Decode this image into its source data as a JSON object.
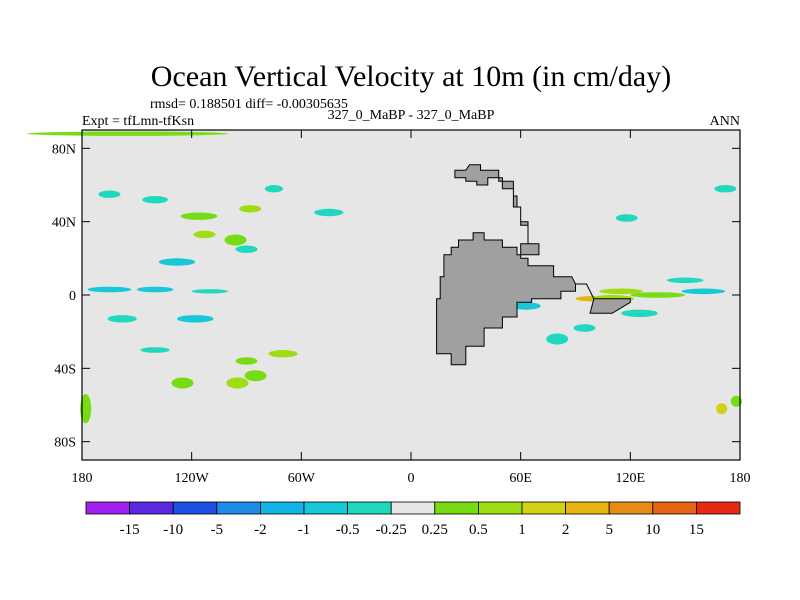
{
  "chart_data": {
    "type": "heatmap",
    "title": "Ocean Vertical Velocity at 10m (in cm/day)",
    "stats": "rmsd= 0.188501 diff= -0.00305635",
    "left_label": "Expt = tfLmn-tfKsn",
    "center_label": "327_0_MaBP - 327_0_MaBP",
    "right_label": "ANN",
    "x_ticks": [
      {
        "value": -180,
        "label": "180"
      },
      {
        "value": -120,
        "label": "120W"
      },
      {
        "value": -60,
        "label": "60W"
      },
      {
        "value": 0,
        "label": "0"
      },
      {
        "value": 60,
        "label": "60E"
      },
      {
        "value": 120,
        "label": "120E"
      },
      {
        "value": 180,
        "label": "180"
      }
    ],
    "y_ticks": [
      {
        "value": 80,
        "label": "80N"
      },
      {
        "value": 40,
        "label": "40N"
      },
      {
        "value": 0,
        "label": "0"
      },
      {
        "value": -40,
        "label": "40S"
      },
      {
        "value": -80,
        "label": "80S"
      }
    ],
    "xlim": [
      -180,
      180
    ],
    "ylim": [
      -90,
      90
    ],
    "colorbar": {
      "levels": [
        "-15",
        "-10",
        "-5",
        "-2",
        "-1",
        "-0.5",
        "-0.25",
        "0.25",
        "0.5",
        "1",
        "2",
        "5",
        "10",
        "15"
      ],
      "colors": [
        "#a020f0",
        "#5a28e0",
        "#1e50e6",
        "#1e8ce6",
        "#12b4e6",
        "#16c8d8",
        "#20d8c0",
        "#e6e6e6",
        "#78dc14",
        "#a0dc14",
        "#d2d214",
        "#e6b414",
        "#e68c14",
        "#e66414",
        "#e62814"
      ]
    },
    "palette": {
      "background": "#e6e6e6",
      "land": "#a0a0a0",
      "frame": "#000000"
    },
    "land": [
      [
        [
          24,
          68
        ],
        [
          30,
          68
        ],
        [
          32,
          71
        ],
        [
          38,
          71
        ],
        [
          38,
          68
        ],
        [
          48,
          68
        ],
        [
          48,
          62
        ],
        [
          56,
          62
        ],
        [
          56,
          48
        ],
        [
          60,
          48
        ],
        [
          60,
          38
        ],
        [
          64,
          38
        ],
        [
          64,
          28
        ],
        [
          70,
          28
        ],
        [
          70,
          22
        ],
        [
          58,
          22
        ],
        [
          58,
          26
        ],
        [
          50,
          26
        ],
        [
          50,
          30
        ],
        [
          40,
          30
        ],
        [
          40,
          34
        ],
        [
          34,
          34
        ],
        [
          34,
          30
        ],
        [
          26,
          30
        ],
        [
          26,
          26
        ],
        [
          22,
          26
        ],
        [
          22,
          22
        ],
        [
          18,
          22
        ],
        [
          18,
          10
        ],
        [
          16,
          10
        ],
        [
          16,
          -2
        ],
        [
          14,
          -2
        ],
        [
          14,
          -16
        ],
        [
          14,
          -32
        ],
        [
          22,
          -32
        ],
        [
          22,
          -38
        ],
        [
          30,
          -38
        ],
        [
          30,
          -28
        ],
        [
          40,
          -28
        ],
        [
          40,
          -18
        ],
        [
          50,
          -18
        ],
        [
          50,
          -12
        ],
        [
          58,
          -12
        ],
        [
          58,
          -4
        ],
        [
          66,
          -4
        ],
        [
          66,
          -2
        ],
        [
          82,
          -2
        ],
        [
          82,
          2
        ],
        [
          90,
          2
        ],
        [
          90,
          6
        ],
        [
          96,
          6
        ],
        [
          100,
          -2
        ],
        [
          98,
          -10
        ],
        [
          110,
          -10
        ],
        [
          120,
          -4
        ],
        [
          120,
          -2
        ],
        [
          100,
          -2
        ],
        [
          96,
          6
        ],
        [
          90,
          6
        ],
        [
          88,
          10
        ],
        [
          78,
          10
        ],
        [
          78,
          16
        ],
        [
          64,
          16
        ],
        [
          64,
          20
        ],
        [
          60,
          20
        ],
        [
          60,
          28
        ],
        [
          64,
          28
        ],
        [
          64,
          40
        ],
        [
          60,
          40
        ],
        [
          60,
          48
        ],
        [
          58,
          48
        ],
        [
          58,
          54
        ],
        [
          56,
          54
        ],
        [
          56,
          58
        ],
        [
          50,
          58
        ],
        [
          50,
          64
        ],
        [
          42,
          64
        ],
        [
          42,
          60
        ],
        [
          36,
          60
        ],
        [
          36,
          62
        ],
        [
          30,
          62
        ],
        [
          30,
          64
        ],
        [
          24,
          64
        ]
      ]
    ]
  }
}
